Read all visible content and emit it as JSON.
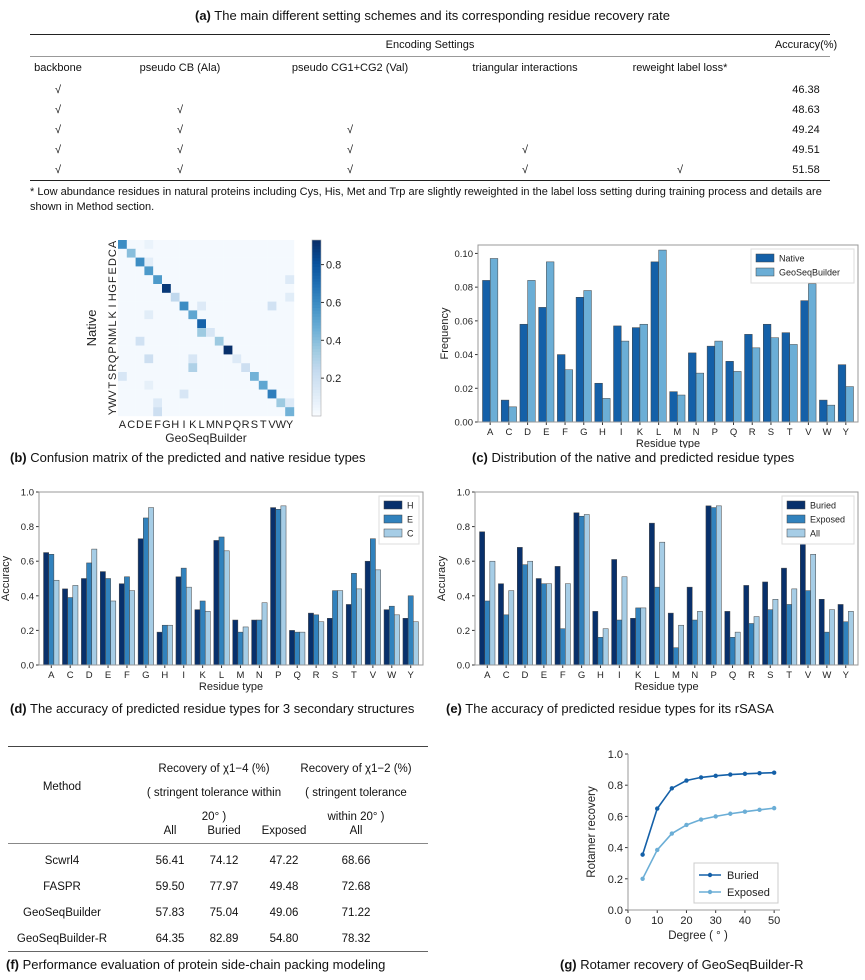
{
  "panel_a": {
    "caption_letter": "(a)",
    "caption": "The main different setting schemes and its corresponding residue recovery rate",
    "group_header": "Encoding Settings",
    "accuracy_header": "Accuracy(%)",
    "columns": [
      "backbone",
      "pseudo CB (Ala)",
      "pseudo CG1+CG2 (Val)",
      "triangular interactions",
      "reweight label loss*"
    ],
    "rows": [
      {
        "checks": [
          true,
          false,
          false,
          false,
          false
        ],
        "accuracy": "46.38"
      },
      {
        "checks": [
          true,
          true,
          false,
          false,
          false
        ],
        "accuracy": "48.63"
      },
      {
        "checks": [
          true,
          true,
          true,
          false,
          false
        ],
        "accuracy": "49.24"
      },
      {
        "checks": [
          true,
          true,
          true,
          true,
          false
        ],
        "accuracy": "49.51"
      },
      {
        "checks": [
          true,
          true,
          true,
          true,
          true
        ],
        "accuracy": "51.58"
      }
    ],
    "check_symbol": "√",
    "note": "* Low abundance residues in natural proteins including Cys, His, Met and Trp are slightly reweighted in the label loss setting during training process and details are shown in Method section."
  },
  "chart_data": [
    {
      "id": "b",
      "type": "heatmap",
      "caption_letter": "(b)",
      "caption": "Confusion matrix of the predicted and native residue types",
      "xlabel": "GeoSeqBuilder",
      "ylabel": "Native",
      "categories": [
        "A",
        "C",
        "D",
        "E",
        "F",
        "G",
        "H",
        "I",
        "K",
        "L",
        "M",
        "N",
        "P",
        "Q",
        "R",
        "S",
        "T",
        "V",
        "W",
        "Y"
      ],
      "diagonal": [
        0.6,
        0.4,
        0.6,
        0.55,
        0.55,
        0.9,
        0.25,
        0.6,
        0.5,
        0.75,
        0.15,
        0.35,
        0.93,
        0.12,
        0.2,
        0.45,
        0.5,
        0.65,
        0.35,
        0.45
      ],
      "off_diagonal": [
        [
          "M",
          "L",
          0.35
        ],
        [
          "R",
          "K",
          0.3
        ],
        [
          "Q",
          "E",
          0.2
        ],
        [
          "Q",
          "K",
          0.15
        ],
        [
          "I",
          "V",
          0.18
        ],
        [
          "S",
          "A",
          0.15
        ],
        [
          "T",
          "E",
          0.08
        ],
        [
          "W",
          "F",
          0.12
        ],
        [
          "Y",
          "F",
          0.2
        ],
        [
          "N",
          "D",
          0.18
        ],
        [
          "V",
          "I",
          0.15
        ],
        [
          "F",
          "Y",
          0.12
        ],
        [
          "H",
          "Y",
          0.1
        ],
        [
          "I",
          "L",
          0.12
        ],
        [
          "K",
          "E",
          0.1
        ],
        [
          "A",
          "E",
          0.06
        ],
        [
          "D",
          "E",
          0.1
        ],
        [
          "W",
          "Y",
          0.12
        ]
      ],
      "background_value": 0.015,
      "colorbar_ticks": [
        "0.2",
        "0.4",
        "0.6",
        "0.8"
      ],
      "colorbar_range": [
        0,
        0.93
      ],
      "colormap": "Blues"
    },
    {
      "id": "c",
      "type": "bar",
      "caption_letter": "(c)",
      "caption": "Distribution of the native and predicted residue types",
      "xlabel": "Residue type",
      "ylabel": "Frequency",
      "ylim": [
        0,
        0.105
      ],
      "yticks": [
        "0.00",
        "0.02",
        "0.04",
        "0.06",
        "0.08",
        "0.10"
      ],
      "ytick_values": [
        0,
        0.02,
        0.04,
        0.06,
        0.08,
        0.1
      ],
      "categories": [
        "A",
        "C",
        "D",
        "E",
        "F",
        "G",
        "H",
        "I",
        "K",
        "L",
        "M",
        "N",
        "P",
        "Q",
        "R",
        "S",
        "T",
        "V",
        "W",
        "Y"
      ],
      "legend": "top-right",
      "series": [
        {
          "name": "Native",
          "color": "#1460a8",
          "values": [
            0.084,
            0.013,
            0.058,
            0.068,
            0.04,
            0.074,
            0.023,
            0.057,
            0.056,
            0.095,
            0.018,
            0.041,
            0.045,
            0.036,
            0.052,
            0.058,
            0.053,
            0.072,
            0.013,
            0.034
          ]
        },
        {
          "name": "GeoSeqBuilder",
          "color": "#6baed6",
          "values": [
            0.097,
            0.009,
            0.084,
            0.095,
            0.031,
            0.078,
            0.014,
            0.048,
            0.058,
            0.102,
            0.016,
            0.029,
            0.048,
            0.03,
            0.044,
            0.05,
            0.046,
            0.082,
            0.01,
            0.021
          ]
        }
      ]
    },
    {
      "id": "d",
      "type": "bar",
      "caption_letter": "(d)",
      "caption": "The accuracy of predicted residue types for 3 secondary structures",
      "xlabel": "Residue type",
      "ylabel": "Accuracy",
      "ylim": [
        0,
        1.0
      ],
      "yticks": [
        "0.0",
        "0.2",
        "0.4",
        "0.6",
        "0.8",
        "1.0"
      ],
      "ytick_values": [
        0,
        0.2,
        0.4,
        0.6,
        0.8,
        1.0
      ],
      "categories": [
        "A",
        "C",
        "D",
        "E",
        "F",
        "G",
        "H",
        "I",
        "K",
        "L",
        "M",
        "N",
        "P",
        "Q",
        "R",
        "S",
        "T",
        "V",
        "W",
        "Y"
      ],
      "legend": "top-right",
      "series": [
        {
          "name": "H",
          "color": "#08306b",
          "values": [
            0.65,
            0.44,
            0.5,
            0.54,
            0.47,
            0.73,
            0.19,
            0.51,
            0.32,
            0.72,
            0.26,
            0.26,
            0.91,
            0.2,
            0.3,
            0.27,
            0.35,
            0.6,
            0.32,
            0.27
          ]
        },
        {
          "name": "E",
          "color": "#3182bd",
          "values": [
            0.64,
            0.39,
            0.59,
            0.5,
            0.51,
            0.85,
            0.23,
            0.56,
            0.37,
            0.74,
            0.19,
            0.26,
            0.9,
            0.19,
            0.29,
            0.43,
            0.53,
            0.73,
            0.34,
            0.4
          ]
        },
        {
          "name": "C",
          "color": "#a6cde6",
          "values": [
            0.49,
            0.46,
            0.67,
            0.37,
            0.43,
            0.91,
            0.23,
            0.45,
            0.31,
            0.66,
            0.22,
            0.36,
            0.92,
            0.19,
            0.25,
            0.43,
            0.44,
            0.55,
            0.29,
            0.25
          ]
        }
      ]
    },
    {
      "id": "e",
      "type": "bar",
      "caption_letter": "(e)",
      "caption": "The accuracy of  predicted  residue types for its rSASA",
      "xlabel": "Residue type",
      "ylabel": "Accuracy",
      "ylim": [
        0,
        1.0
      ],
      "yticks": [
        "0.0",
        "0.2",
        "0.4",
        "0.6",
        "0.8",
        "1.0"
      ],
      "ytick_values": [
        0,
        0.2,
        0.4,
        0.6,
        0.8,
        1.0
      ],
      "categories": [
        "A",
        "C",
        "D",
        "E",
        "F",
        "G",
        "H",
        "I",
        "K",
        "L",
        "M",
        "N",
        "P",
        "Q",
        "R",
        "S",
        "T",
        "V",
        "W",
        "Y"
      ],
      "legend": "top-right",
      "series": [
        {
          "name": "Buried",
          "color": "#08306b",
          "values": [
            0.77,
            0.47,
            0.68,
            0.5,
            0.57,
            0.88,
            0.31,
            0.61,
            0.27,
            0.82,
            0.3,
            0.45,
            0.92,
            0.31,
            0.46,
            0.48,
            0.56,
            0.74,
            0.38,
            0.35
          ]
        },
        {
          "name": "Exposed",
          "color": "#3182bd",
          "values": [
            0.37,
            0.29,
            0.58,
            0.47,
            0.21,
            0.86,
            0.16,
            0.26,
            0.33,
            0.45,
            0.1,
            0.26,
            0.91,
            0.16,
            0.24,
            0.32,
            0.35,
            0.43,
            0.19,
            0.25
          ]
        },
        {
          "name": "All",
          "color": "#a6cde6",
          "values": [
            0.6,
            0.43,
            0.6,
            0.47,
            0.47,
            0.87,
            0.21,
            0.51,
            0.33,
            0.71,
            0.23,
            0.31,
            0.92,
            0.19,
            0.28,
            0.38,
            0.44,
            0.64,
            0.32,
            0.31
          ]
        }
      ]
    },
    {
      "id": "g",
      "type": "line",
      "caption_letter": "(g)",
      "caption": "Rotamer recovery of GeoSeqBuilder-R",
      "xlabel": "Degree ( ° )",
      "ylabel": "Rotamer recovery",
      "xlim": [
        0,
        52
      ],
      "ylim": [
        0,
        1.0
      ],
      "xticks": [
        "0",
        "10",
        "20",
        "30",
        "40",
        "50"
      ],
      "xtick_values": [
        0,
        10,
        20,
        30,
        40,
        50
      ],
      "yticks": [
        "0.0",
        "0.2",
        "0.4",
        "0.6",
        "0.8",
        "1.0"
      ],
      "ytick_values": [
        0,
        0.2,
        0.4,
        0.6,
        0.8,
        1.0
      ],
      "legend": "bottom-right",
      "x": [
        5,
        10,
        15,
        20,
        25,
        30,
        35,
        40,
        45,
        50
      ],
      "series": [
        {
          "name": "Buried",
          "color": "#1460a8",
          "values": [
            0.355,
            0.65,
            0.78,
            0.83,
            0.85,
            0.86,
            0.868,
            0.873,
            0.877,
            0.88
          ]
        },
        {
          "name": "Exposed",
          "color": "#6baed6",
          "values": [
            0.2,
            0.385,
            0.49,
            0.545,
            0.58,
            0.6,
            0.617,
            0.63,
            0.642,
            0.653
          ]
        }
      ]
    }
  ],
  "panel_f": {
    "caption_letter": "(f)",
    "caption": "Performance evaluation of protein side-chain packing modeling",
    "method_header": "Method",
    "chi14_header": [
      "Recovery of χ1−4 (%)",
      "( stringent tolerance within",
      "20°  )"
    ],
    "chi12_header": [
      "Recovery of χ1−2 (%)",
      "( stringent tolerance",
      "within 20°  )"
    ],
    "subheaders": [
      "All",
      "Buried",
      "Exposed",
      "All"
    ],
    "rows": [
      [
        "Scwrl4",
        "56.41",
        "74.12",
        "47.22",
        "68.66"
      ],
      [
        "FASPR",
        "59.50",
        "77.97",
        "49.48",
        "72.68"
      ],
      [
        "GeoSeqBuilder",
        "57.83",
        "75.04",
        "49.06",
        "71.22"
      ],
      [
        "GeoSeqBuilder-R",
        "64.35",
        "82.89",
        "54.80",
        "78.32"
      ]
    ]
  }
}
